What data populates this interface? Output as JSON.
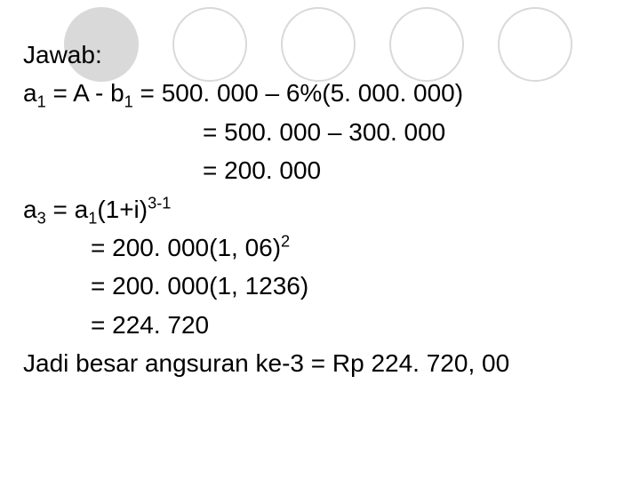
{
  "decor": {
    "circle_fill": "#d9d9d9",
    "circle_outline": "#d9d9d9",
    "background": "#ffffff",
    "text_color": "#000000",
    "fontsize": 28
  },
  "lines": {
    "l0": "Jawab:",
    "l1_pre": " a",
    "l1_sub1": "1",
    "l1_mid": " = A -  b",
    "l1_sub2": "1",
    "l1_post": " = 500. 000 – 6%(5. 000. 000)",
    "l2": "= 500. 000 – 300. 000",
    "l3": "= 200. 000",
    "l4_pre": " a",
    "l4_sub1": "3",
    "l4_mid": " = a",
    "l4_sub2": "1",
    "l4_post1": "(1+i)",
    "l4_sup": "3-1",
    "l5_pre": "= 200. 000(1, 06)",
    "l5_sup": "2",
    "l6": "= 200. 000(1, 1236)",
    "l7": "= 224. 720",
    "l8": "Jadi besar angsuran ke-3 = Rp 224. 720, 00"
  }
}
